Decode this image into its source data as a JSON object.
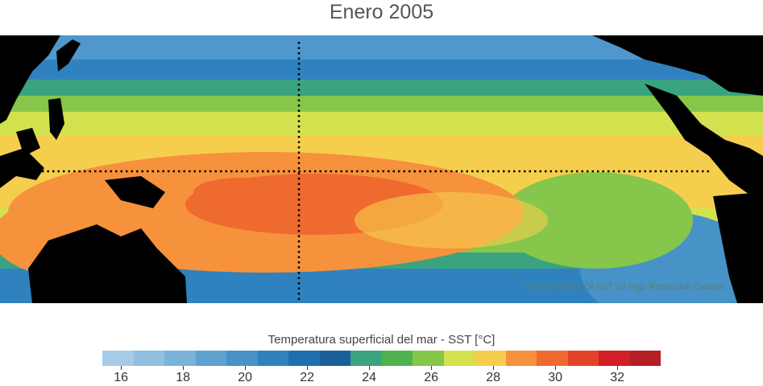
{
  "title": "Enero 2005",
  "source": "Fuente: NOAA OI SST V2 High Resolution Dataset",
  "colorbar": {
    "label": "Temperatura superficial del mar - SST  [°C]",
    "colors": [
      "#a6cbe6",
      "#90bfe0",
      "#7ab2d9",
      "#5fa2d0",
      "#4792c7",
      "#2f82bd",
      "#1d6fae",
      "#1a5f9c",
      "#3aa37f",
      "#4eb34f",
      "#86c64a",
      "#d4e14f",
      "#f6ce4e",
      "#f6913c",
      "#ef6a2e",
      "#e34229",
      "#d21f27",
      "#b21f24"
    ],
    "ticks": [
      "16",
      "18",
      "20",
      "22",
      "24",
      "26",
      "28",
      "30",
      "32"
    ]
  },
  "map": {
    "features": [
      "equator-line",
      "dateline-180"
    ]
  },
  "icons": [
    "land-mask",
    "dotted-equator",
    "dotted-meridian"
  ]
}
